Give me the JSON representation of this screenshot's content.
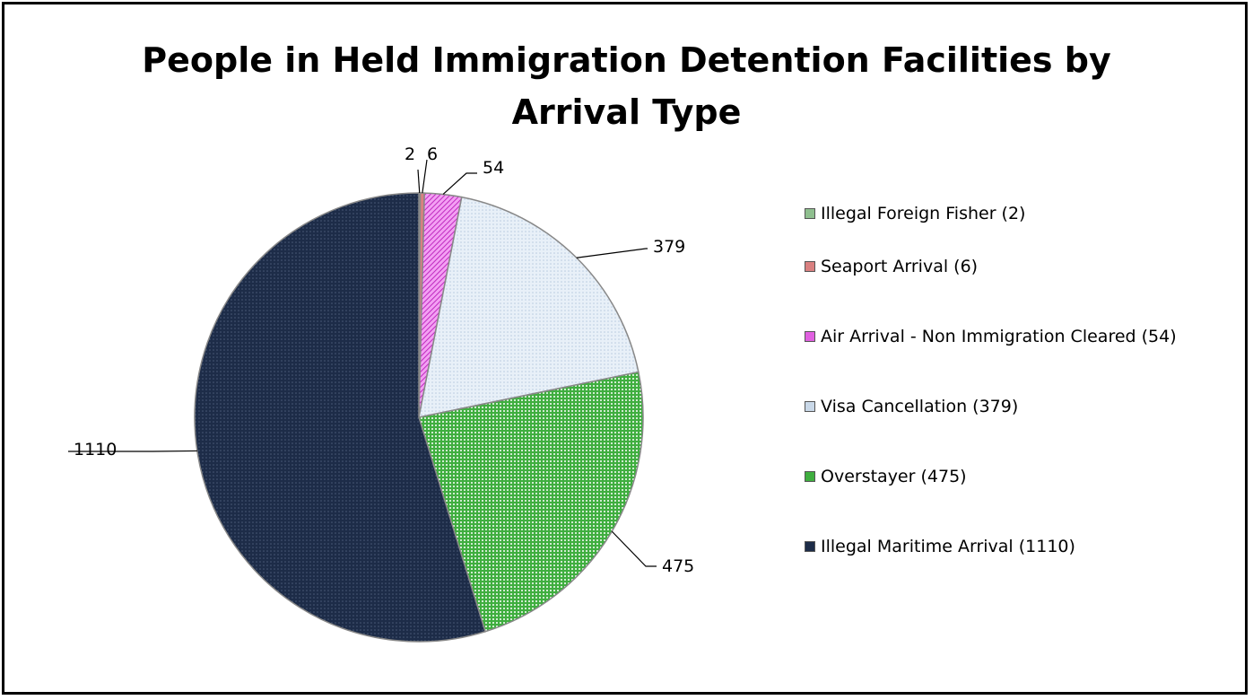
{
  "chart_data": {
    "type": "pie",
    "title_lines": [
      "People in Held Immigration Detention Facilities by",
      "Arrival Type"
    ],
    "slices": [
      {
        "name": "Illegal Foreign Fisher",
        "value": 2,
        "label": "2",
        "legend": "Illegal Foreign Fisher (2)",
        "color": "#8fbf8f"
      },
      {
        "name": "Seaport Arrival",
        "value": 6,
        "label": "6",
        "legend": "Seaport Arrival (6)",
        "color": "#d98080"
      },
      {
        "name": "Air Arrival - Non Immigration Cleared",
        "value": 54,
        "label": "54",
        "legend": "Air Arrival - Non Immigration Cleared (54)",
        "color": "#e060e0"
      },
      {
        "name": "Visa Cancellation",
        "value": 379,
        "label": "379",
        "legend": "Visa Cancellation (379)",
        "color": "#dde8f2"
      },
      {
        "name": "Overstayer",
        "value": 475,
        "label": "475",
        "legend": "Overstayer (475)",
        "color": "#3fae3f"
      },
      {
        "name": "Illegal Maritime Arrival",
        "value": 1110,
        "label": "1110",
        "legend": "Illegal Maritime Arrival (1110)",
        "color": "#1d2c48"
      }
    ],
    "legend_position": "right"
  }
}
